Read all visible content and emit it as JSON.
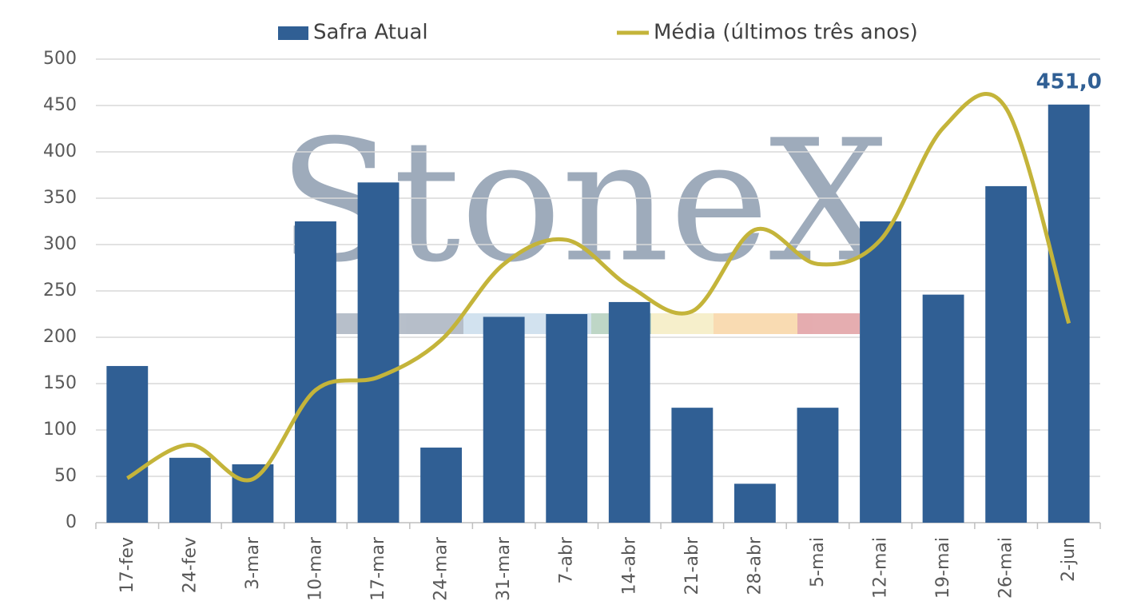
{
  "chart_data": {
    "type": "bar_line",
    "watermark": "StoneX",
    "categories": [
      "17-fev",
      "24-fev",
      "3-mar",
      "10-mar",
      "17-mar",
      "24-mar",
      "31-mar",
      "7-abr",
      "14-abr",
      "21-abr",
      "28-abr",
      "5-mai",
      "12-mai",
      "19-mai",
      "26-mai",
      "2-jun"
    ],
    "series": [
      {
        "name": "Safra Atual",
        "type": "bar",
        "color": "#305f94",
        "values": [
          169,
          70,
          63,
          325,
          367,
          81,
          222,
          225,
          238,
          124,
          42,
          124,
          325,
          246,
          363,
          451
        ],
        "value_labels": [
          null,
          null,
          null,
          null,
          null,
          null,
          null,
          null,
          null,
          null,
          null,
          null,
          null,
          null,
          null,
          "451,0"
        ]
      },
      {
        "name": "Média (últimos três anos)",
        "type": "line",
        "color": "#c4b43a",
        "smooth": true,
        "values": [
          48,
          84,
          47,
          143,
          157,
          197,
          279,
          305,
          255,
          228,
          316,
          279,
          305,
          426,
          447,
          215
        ]
      }
    ],
    "ylim": [
      0,
      500
    ],
    "yticks": [
      0,
      50,
      100,
      150,
      200,
      250,
      300,
      350,
      400,
      450,
      500
    ],
    "grid": true
  }
}
